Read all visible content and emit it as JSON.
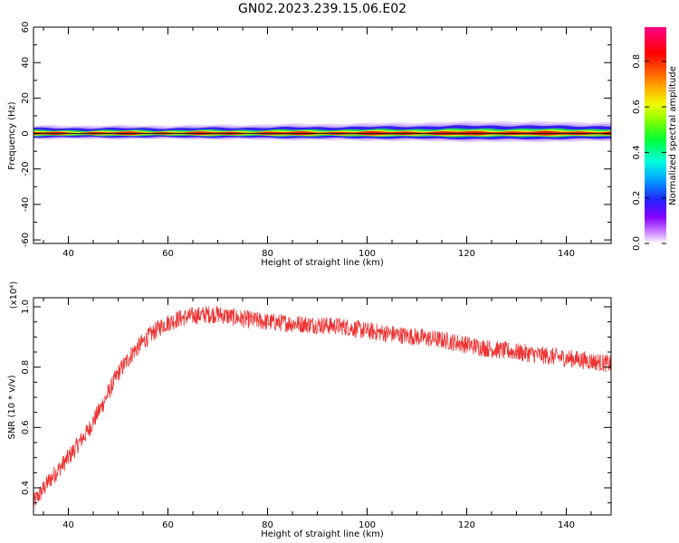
{
  "title": "GN02.2023.239.15.06.E02",
  "colors": {
    "snr_line": "#ee3333",
    "axis": "#000000"
  },
  "chart_data": [
    {
      "type": "heatmap",
      "xlabel": "Height of straight line (km)",
      "ylabel": "Frequency (Hz)",
      "xlim": [
        33,
        149
      ],
      "ylim": [
        -62,
        60
      ],
      "x_ticks": [
        40,
        60,
        80,
        100,
        120,
        140
      ],
      "y_ticks": [
        -60,
        -40,
        -20,
        0,
        20,
        40,
        60
      ],
      "colorbar": {
        "label": "Normalized spectral amplitude",
        "range": [
          0.0,
          0.95
        ],
        "ticks": [
          0.0,
          0.2,
          0.4,
          0.6,
          0.8
        ],
        "colormap": "rainbow (white-purple-blue-cyan-green-yellow-orange-red-magenta)"
      },
      "band_center_hz": 0,
      "band_halfwidth_hz": [
        {
          "x": 33,
          "hz": 4
        },
        {
          "x": 60,
          "hz": 4
        },
        {
          "x": 80,
          "hz": 4.5
        },
        {
          "x": 100,
          "hz": 5
        },
        {
          "x": 125,
          "hz": 6
        },
        {
          "x": 149,
          "hz": 5.5
        }
      ]
    },
    {
      "type": "line",
      "xlabel": "Height of straight line (km)",
      "ylabel": "SNR (10 * v/v)",
      "y_multiplier": "(x10⁴)",
      "xlim": [
        33,
        149
      ],
      "ylim": [
        0.31,
        1.03
      ],
      "x_ticks": [
        40,
        60,
        80,
        100,
        120,
        140
      ],
      "y_ticks": [
        0.4,
        0.6,
        0.8,
        1.0
      ],
      "series": [
        {
          "x": [
            33,
            36,
            40,
            44,
            47,
            50,
            53,
            56,
            59,
            62,
            65,
            68,
            70,
            75,
            80,
            85,
            90,
            95,
            100,
            105,
            110,
            115,
            120,
            125,
            130,
            135,
            140,
            145,
            149
          ],
          "y": [
            0.35,
            0.42,
            0.5,
            0.59,
            0.68,
            0.78,
            0.85,
            0.9,
            0.94,
            0.96,
            0.97,
            0.975,
            0.975,
            0.96,
            0.95,
            0.945,
            0.94,
            0.935,
            0.92,
            0.91,
            0.9,
            0.89,
            0.875,
            0.86,
            0.85,
            0.84,
            0.83,
            0.82,
            0.81
          ],
          "noise_amplitude": 0.03
        }
      ]
    }
  ]
}
